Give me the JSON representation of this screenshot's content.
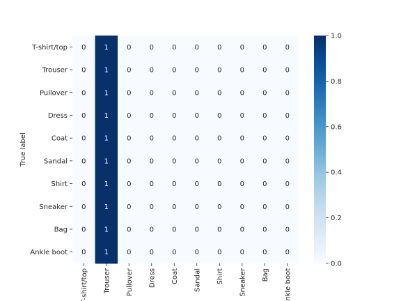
{
  "chart_data": {
    "type": "heatmap",
    "title": "",
    "xlabel": "",
    "ylabel": "True label",
    "x_categories": [
      "T-shirt/top",
      "Trouser",
      "Pullover",
      "Dress",
      "Coat",
      "Sandal",
      "Shirt",
      "Sneaker",
      "Bag",
      "Ankle boot"
    ],
    "y_categories": [
      "T-shirt/top",
      "Trouser",
      "Pullover",
      "Dress",
      "Coat",
      "Sandal",
      "Shirt",
      "Sneaker",
      "Bag",
      "Ankle boot"
    ],
    "values": [
      [
        0,
        1,
        0,
        0,
        0,
        0,
        0,
        0,
        0,
        0
      ],
      [
        0,
        1,
        0,
        0,
        0,
        0,
        0,
        0,
        0,
        0
      ],
      [
        0,
        1,
        0,
        0,
        0,
        0,
        0,
        0,
        0,
        0
      ],
      [
        0,
        1,
        0,
        0,
        0,
        0,
        0,
        0,
        0,
        0
      ],
      [
        0,
        1,
        0,
        0,
        0,
        0,
        0,
        0,
        0,
        0
      ],
      [
        0,
        1,
        0,
        0,
        0,
        0,
        0,
        0,
        0,
        0
      ],
      [
        0,
        1,
        0,
        0,
        0,
        0,
        0,
        0,
        0,
        0
      ],
      [
        0,
        1,
        0,
        0,
        0,
        0,
        0,
        0,
        0,
        0
      ],
      [
        0,
        1,
        0,
        0,
        0,
        0,
        0,
        0,
        0,
        0
      ],
      [
        0,
        1,
        0,
        0,
        0,
        0,
        0,
        0,
        0,
        0
      ]
    ],
    "colorbar": {
      "range": [
        0.0,
        1.0
      ],
      "ticks": [
        "0.0",
        "0.2",
        "0.4",
        "0.6",
        "0.8",
        "1.0"
      ],
      "colormap": "Blues"
    },
    "colors": {
      "low": "#f7fbff",
      "high": "#08306b",
      "text_on_low": "#262626",
      "text_on_high": "#ffffff"
    },
    "annotations": true,
    "grid": false
  }
}
